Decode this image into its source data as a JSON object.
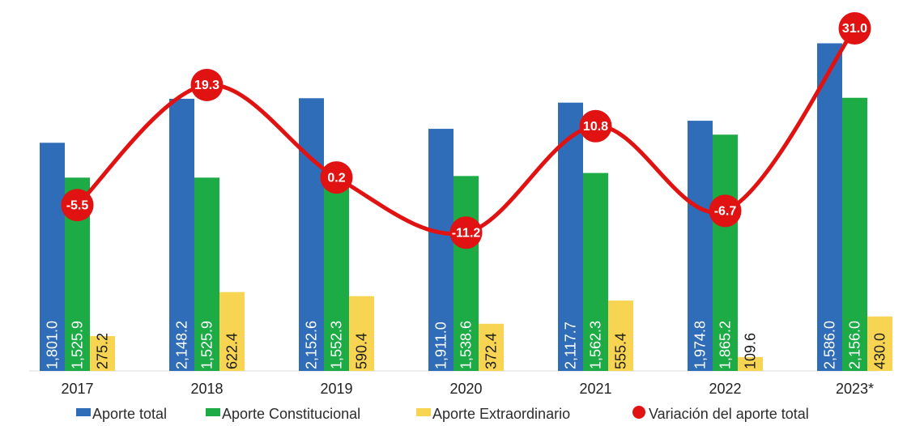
{
  "chart_data": {
    "type": "bar",
    "categories": [
      "2017",
      "2018",
      "2019",
      "2020",
      "2021",
      "2022",
      "2023*"
    ],
    "series": [
      {
        "name": "Aporte total",
        "values": [
          1801.0,
          2148.2,
          2152.6,
          1911.0,
          2117.7,
          1974.8,
          2586.0
        ],
        "labels": [
          "1,801.0",
          "2,148.2",
          "2,152.6",
          "1,911.0",
          "2,117.7",
          "1,974.8",
          "2,586.0"
        ],
        "color": "#2f6db8"
      },
      {
        "name": "Aporte Constitucional",
        "values": [
          1525.9,
          1525.9,
          1552.3,
          1538.6,
          1562.3,
          1865.2,
          2156.0
        ],
        "labels": [
          "1,525.9",
          "1,525.9",
          "1,552.3",
          "1,538.6",
          "1,562.3",
          "1,865.2",
          "2,156.0"
        ],
        "color": "#1dab45"
      },
      {
        "name": "Aporte Extraordinario",
        "values": [
          275.2,
          622.4,
          590.4,
          372.4,
          555.4,
          109.6,
          430.0
        ],
        "labels": [
          "275.2",
          "622.4",
          "590.4",
          "372.4",
          "555.4",
          "109.6",
          "430.0"
        ],
        "color": "#f7d553"
      },
      {
        "name": "Variación del aporte total",
        "type": "line",
        "values": [
          -5.5,
          19.3,
          0.2,
          -11.2,
          10.8,
          -6.7,
          31.0
        ],
        "labels": [
          "-5.5",
          "19.3",
          "0.2",
          "-11.2",
          "10.8",
          "-6.7",
          "31.0"
        ],
        "color": "#e01212"
      }
    ],
    "ylim_bars": [
      0,
      2800
    ],
    "ylim_line": [
      -15,
      31
    ],
    "grid": false,
    "legend_position": "bottom"
  }
}
